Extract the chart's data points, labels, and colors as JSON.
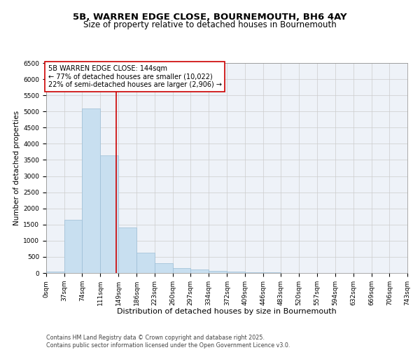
{
  "title1": "5B, WARREN EDGE CLOSE, BOURNEMOUTH, BH6 4AY",
  "title2": "Size of property relative to detached houses in Bournemouth",
  "xlabel": "Distribution of detached houses by size in Bournemouth",
  "ylabel": "Number of detached properties",
  "footer1": "Contains HM Land Registry data © Crown copyright and database right 2025.",
  "footer2": "Contains public sector information licensed under the Open Government Licence v3.0.",
  "bin_labels": [
    "0sqm",
    "37sqm",
    "74sqm",
    "111sqm",
    "149sqm",
    "186sqm",
    "223sqm",
    "260sqm",
    "297sqm",
    "334sqm",
    "372sqm",
    "409sqm",
    "446sqm",
    "483sqm",
    "520sqm",
    "557sqm",
    "594sqm",
    "632sqm",
    "669sqm",
    "706sqm",
    "743sqm"
  ],
  "bin_edges": [
    0,
    37,
    74,
    111,
    149,
    186,
    223,
    260,
    297,
    334,
    372,
    409,
    446,
    483,
    520,
    557,
    594,
    632,
    669,
    706,
    743
  ],
  "values": [
    50,
    1650,
    5100,
    3650,
    1400,
    620,
    310,
    155,
    110,
    70,
    50,
    30,
    20,
    5,
    3,
    2,
    1,
    1,
    0,
    0,
    0
  ],
  "bar_color": "#c8dff0",
  "bar_edgecolor": "#9bbdd6",
  "grid_color": "#cccccc",
  "bg_color": "#eef2f8",
  "fig_color": "#ffffff",
  "vline_x": 144,
  "vline_color": "#cc0000",
  "ylim": [
    0,
    6500
  ],
  "annotation_text": "5B WARREN EDGE CLOSE: 144sqm\n← 77% of detached houses are smaller (10,022)\n22% of semi-detached houses are larger (2,906) →",
  "annotation_box_color": "#cc0000",
  "title_fontsize": 9.5,
  "subtitle_fontsize": 8.5,
  "xlabel_fontsize": 8,
  "ylabel_fontsize": 7.5,
  "tick_fontsize": 6.5,
  "annot_fontsize": 7,
  "footer_fontsize": 5.8
}
